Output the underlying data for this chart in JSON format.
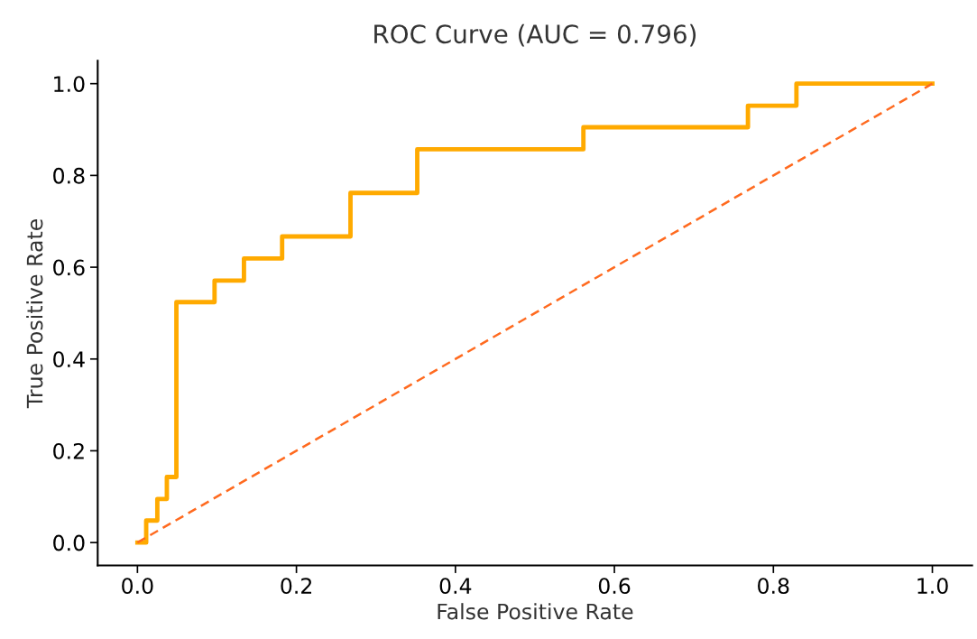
{
  "chart_data": {
    "type": "line",
    "title": "ROC Curve (AUC = 0.796)",
    "xlabel": "False Positive Rate",
    "ylabel": "True Positive Rate",
    "series": [
      {
        "type": "step",
        "color": "#ffaa00",
        "line_style": "solid",
        "x": [
          0,
          0.011,
          0.025,
          0.037,
          0.049,
          0.097,
          0.134,
          0.182,
          0.268,
          0.352,
          0.561,
          0.768,
          0.829,
          1.0
        ],
        "values": [
          0,
          0.048,
          0.095,
          0.143,
          0.524,
          0.571,
          0.619,
          0.667,
          0.762,
          0.857,
          0.905,
          0.952,
          1.0,
          1.0
        ]
      },
      {
        "color": "#ff6a1f",
        "line_style": "dashed",
        "x": [
          0,
          1
        ],
        "values": [
          0,
          1
        ]
      }
    ],
    "xlim": [
      -0.05,
      1.05
    ],
    "ylim": [
      -0.05,
      1.05
    ],
    "xticks": [
      {
        "value": 0,
        "label": "0.0"
      },
      0.2,
      0.4,
      0.6,
      0.8,
      {
        "value": 1,
        "label": "1.0"
      }
    ],
    "yticks": [
      {
        "value": 0,
        "label": "0.0"
      },
      0.2,
      0.4,
      0.6,
      0.8,
      {
        "value": 1,
        "label": "1.0"
      }
    ],
    "grid": false
  }
}
